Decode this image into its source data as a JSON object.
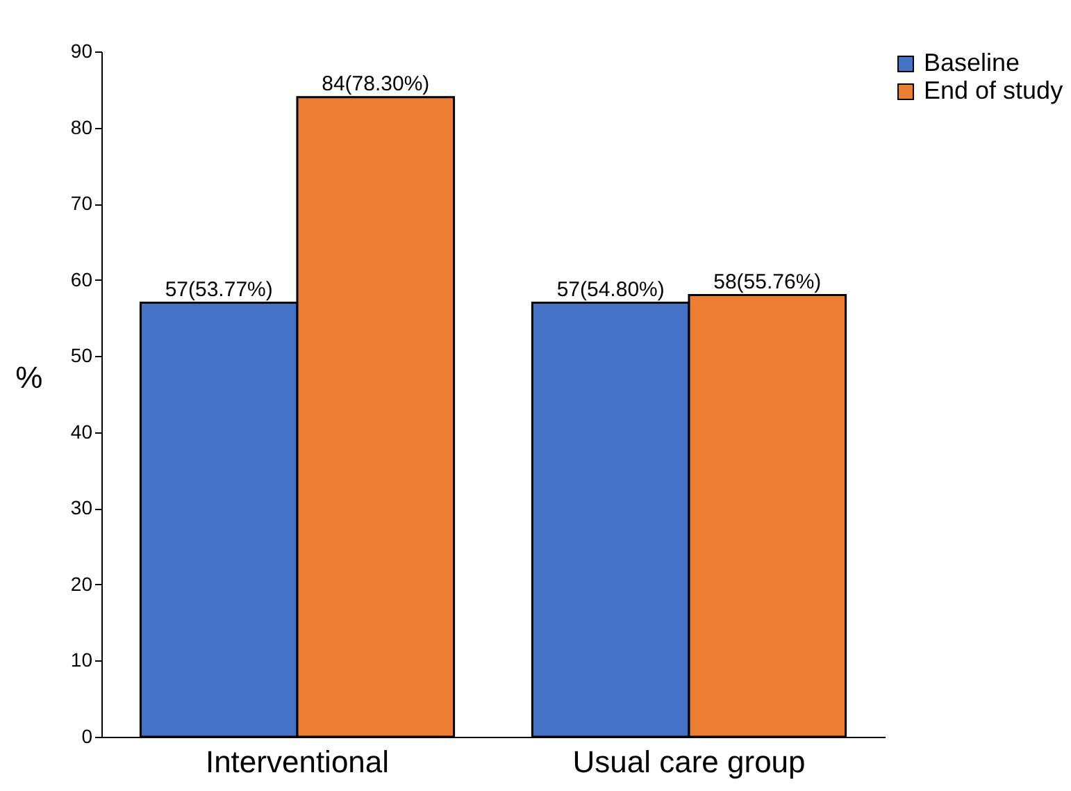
{
  "chart_data": {
    "type": "bar",
    "ylabel": "%",
    "categories": [
      "Interventional",
      "Usual care group"
    ],
    "series": [
      {
        "name": "Baseline",
        "color": "#4472c4",
        "values": [
          57,
          57
        ],
        "value_labels": [
          "57(53.77%)",
          "57(54.80%)"
        ]
      },
      {
        "name": "End of study",
        "color": "#ed7d31",
        "values": [
          84,
          58
        ],
        "value_labels": [
          "84(78.30%)",
          "58(55.76%)"
        ]
      }
    ],
    "ylim": [
      0,
      90
    ],
    "yticks": [
      0,
      10,
      20,
      30,
      40,
      50,
      60,
      70,
      80,
      90
    ],
    "grid": false,
    "legend": "right"
  }
}
